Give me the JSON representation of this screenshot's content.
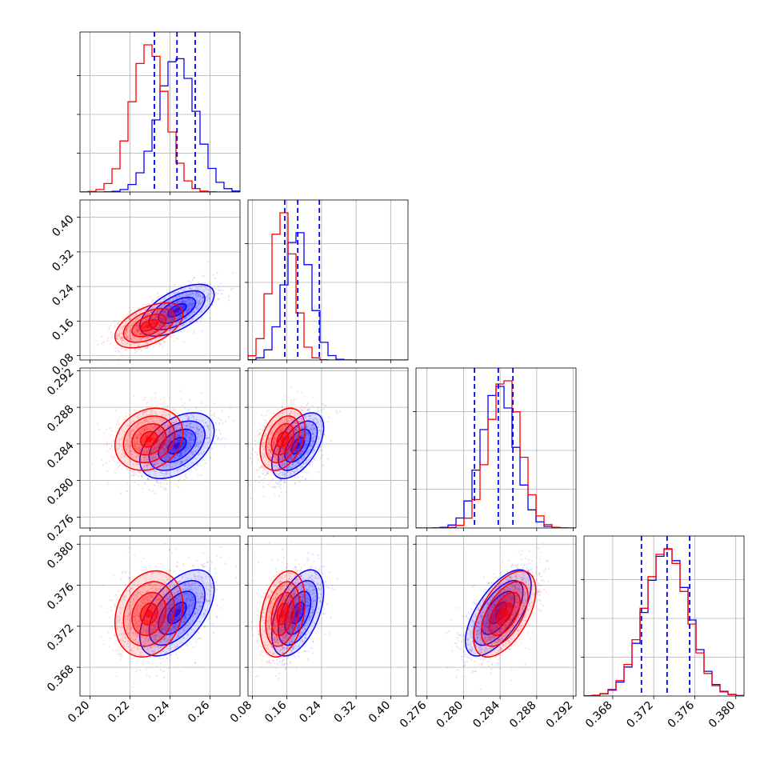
{
  "chart_data": {
    "type": "corner",
    "grid": true,
    "series": [
      {
        "name": "",
        "color": "#0000ff",
        "means": [
          0.2435,
          0.185,
          0.2838,
          0.3733
        ],
        "sigmas": [
          0.0093,
          0.03,
          0.0018,
          0.0021
        ]
      },
      {
        "name": "",
        "color": "#ff0000",
        "means": [
          0.2295,
          0.15,
          0.2845,
          0.3732
        ],
        "sigmas": [
          0.0085,
          0.026,
          0.0017,
          0.0021
        ]
      }
    ],
    "correlations": {
      "blue": {
        "1-0": 0.6,
        "2-0": 0.45,
        "2-1": 0.55,
        "3-0": 0.55,
        "3-1": 0.5,
        "3-2": 0.65
      },
      "red": {
        "1-0": 0.5,
        "2-0": 0.2,
        "2-1": 0.35,
        "3-0": 0.2,
        "3-1": 0.3,
        "3-2": 0.55
      }
    },
    "quantile_lines": [
      [
        0.2322,
        0.2435,
        0.2526
      ],
      [
        0.155,
        0.185,
        0.235
      ],
      [
        0.2812,
        0.2838,
        0.2854
      ],
      [
        0.3708,
        0.3733,
        0.3755
      ]
    ],
    "axes": [
      {
        "range": [
          0.195,
          0.275
        ],
        "ticks": [
          0.2,
          0.22,
          0.24,
          0.26
        ],
        "labels": [
          "0.20",
          "0.22",
          "0.24",
          "0.26"
        ]
      },
      {
        "range": [
          0.07,
          0.44
        ],
        "ticks": [
          0.08,
          0.16,
          0.24,
          0.32,
          0.4
        ],
        "labels": [
          "0.08",
          "0.16",
          "0.24",
          "0.32",
          "0.40"
        ]
      },
      {
        "range": [
          0.2748,
          0.2923
        ],
        "ticks": [
          0.276,
          0.28,
          0.284,
          0.288,
          0.292
        ],
        "labels": [
          "0.276",
          "0.280",
          "0.284",
          "0.288",
          "0.292"
        ]
      },
      {
        "range": [
          0.3652,
          0.3808
        ],
        "ticks": [
          0.368,
          0.372,
          0.376,
          0.38
        ],
        "labels": [
          "0.368",
          "0.372",
          "0.376",
          "0.380"
        ]
      }
    ]
  }
}
